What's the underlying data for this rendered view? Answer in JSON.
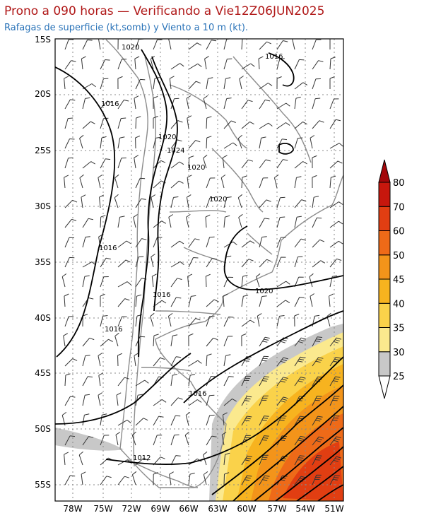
{
  "header": {
    "title": "Prono a 090 horas — Verificando a Vie12Z06JUN2025",
    "subtitle": "Rafagas de superficie (kt,somb) y Viento a 10 m (kt)."
  },
  "map": {
    "lat_labels": [
      "15S",
      "20S",
      "25S",
      "30S",
      "35S",
      "40S",
      "45S",
      "50S",
      "55S"
    ],
    "lon_labels": [
      "78W",
      "75W",
      "72W",
      "69W",
      "66W",
      "63W",
      "60W",
      "57W",
      "54W",
      "51W"
    ],
    "isobar_labels": [
      "1020",
      "1016",
      "1016",
      "1020",
      "1024",
      "1020",
      "1020",
      "1016",
      "1016",
      "1020",
      "1016",
      "1016",
      "1012"
    ]
  },
  "legend": {
    "values": [
      "25",
      "30",
      "35",
      "40",
      "45",
      "50",
      "60",
      "70",
      "80"
    ],
    "colors": [
      "#c8c8c8",
      "#fbe98e",
      "#fad24a",
      "#f7b31f",
      "#f3941a",
      "#ee6a18",
      "#e13e12",
      "#c7170d",
      "#a3070a"
    ]
  },
  "colors": {
    "title": "#b01818",
    "subtitle": "#2a73b8",
    "coastline": "#8c8c8c",
    "isobar": "#000000",
    "grid": "#888888"
  }
}
